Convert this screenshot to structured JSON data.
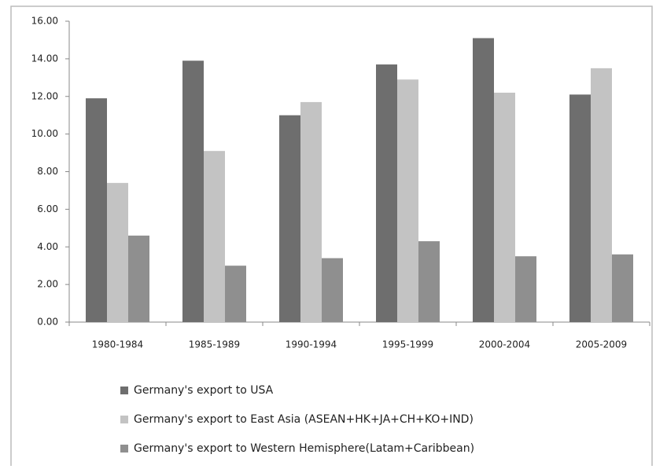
{
  "chart_data": {
    "type": "bar",
    "categories": [
      "1980-1984",
      "1985-1989",
      "1990-1994",
      "1995-1999",
      "2000-2004",
      "2005-2009"
    ],
    "series": [
      {
        "name": "Germany's export to USA",
        "color": "#6e6e6e",
        "values": [
          11.9,
          13.9,
          11.0,
          13.7,
          15.1,
          12.1
        ]
      },
      {
        "name": "Germany's export to East Asia (ASEAN+HK+JA+CH+KO+IND)",
        "color": "#c3c3c3",
        "values": [
          7.4,
          9.1,
          11.7,
          12.9,
          12.2,
          13.5
        ]
      },
      {
        "name": "Germany's export to Western Hemisphere(Latam+Caribbean)",
        "color": "#8f8f8f",
        "values": [
          4.6,
          3.0,
          3.4,
          4.3,
          3.5,
          3.6
        ]
      }
    ],
    "ylim": [
      0,
      16
    ],
    "yticks": [
      {
        "value": 0,
        "label": "0.00"
      },
      {
        "value": 2,
        "label": "2.00"
      },
      {
        "value": 4,
        "label": "4.00"
      },
      {
        "value": 6,
        "label": "6.00"
      },
      {
        "value": 8,
        "label": "8.00"
      },
      {
        "value": 10,
        "label": "10.00"
      },
      {
        "value": 12,
        "label": "12.00"
      },
      {
        "value": 14,
        "label": "14.00"
      },
      {
        "value": 16,
        "label": "16.00"
      }
    ],
    "grid": false,
    "legend": "bottom"
  }
}
